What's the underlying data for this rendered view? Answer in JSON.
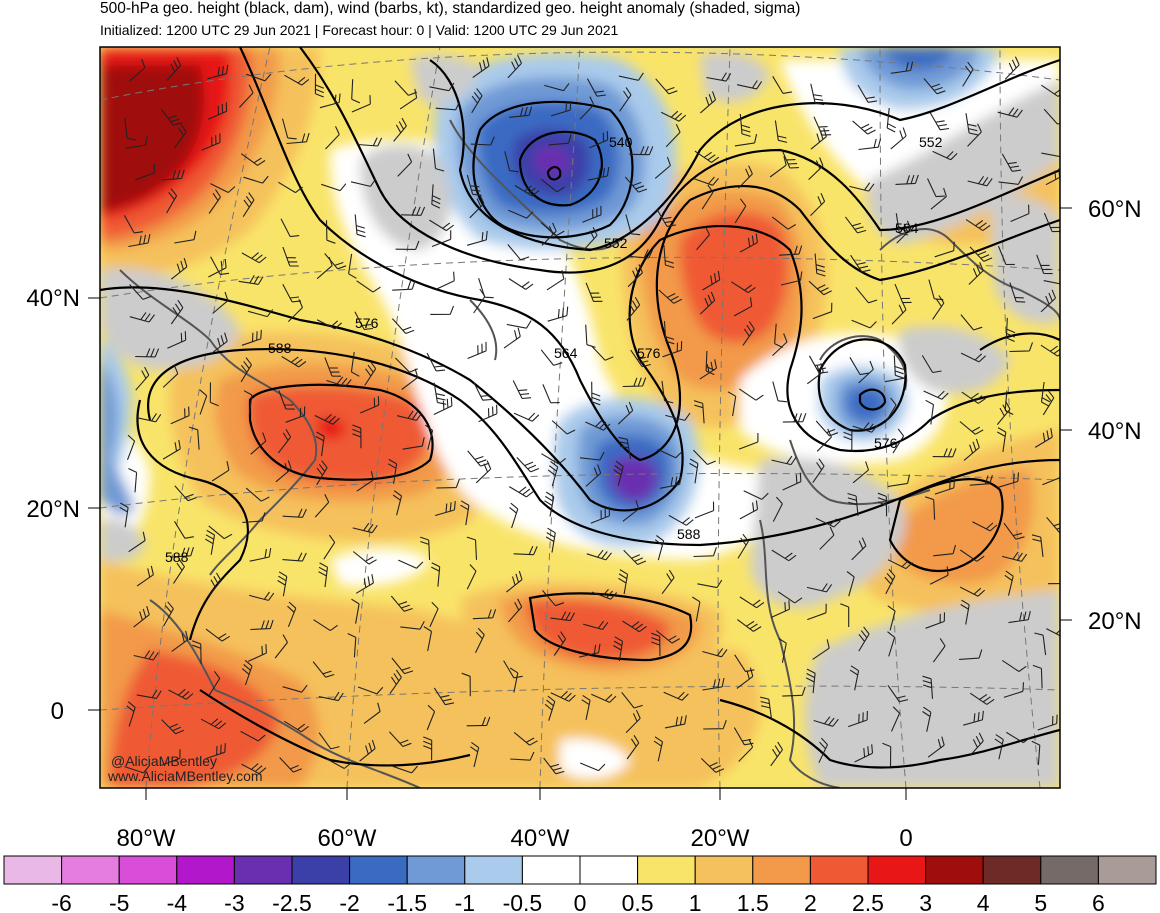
{
  "header": {
    "title": "500-hPa geo. height (black, dam), wind (barbs, kt), standardized geo. height anomaly (shaded, sigma)",
    "subtitle": "Initialized: 1200 UTC 29 Jun 2021 | Forecast hour: 0 | Valid: 1200 UTC 29 Jun 2021"
  },
  "map": {
    "lat_labels_left": [
      "40°N",
      "20°N",
      "0"
    ],
    "lat_labels_right": [
      "60°N",
      "40°N",
      "20°N"
    ],
    "lon_labels_bottom": [
      "80°W",
      "60°W",
      "40°W",
      "20°W",
      "0"
    ],
    "contour_labels": [
      "540",
      "552",
      "552",
      "564",
      "564",
      "576",
      "576",
      "576",
      "588",
      "588",
      "588"
    ],
    "credit_line1": "@AliciaMBentley",
    "credit_line2": "www.AliciaMBentley.com"
  },
  "colorbar": {
    "labels": [
      "-6",
      "-5",
      "-4",
      "-3",
      "-2.5",
      "-2",
      "-1.5",
      "-1",
      "-0.5",
      "0",
      "0.5",
      "1",
      "1.5",
      "2",
      "2.5",
      "3",
      "4",
      "5",
      "6"
    ],
    "colors": [
      "#e9b8e6",
      "#e57de0",
      "#d84ed9",
      "#b317cc",
      "#6a2fb0",
      "#3b3fa8",
      "#3a6bc2",
      "#6f9ad6",
      "#aacbeb",
      "#ffffff",
      "#ffffff",
      "#f9e46a",
      "#f5c15c",
      "#f29a4a",
      "#ef5a35",
      "#e81616",
      "#a00d0d",
      "#6e2a27",
      "#766a68",
      "#a89b98"
    ]
  }
}
